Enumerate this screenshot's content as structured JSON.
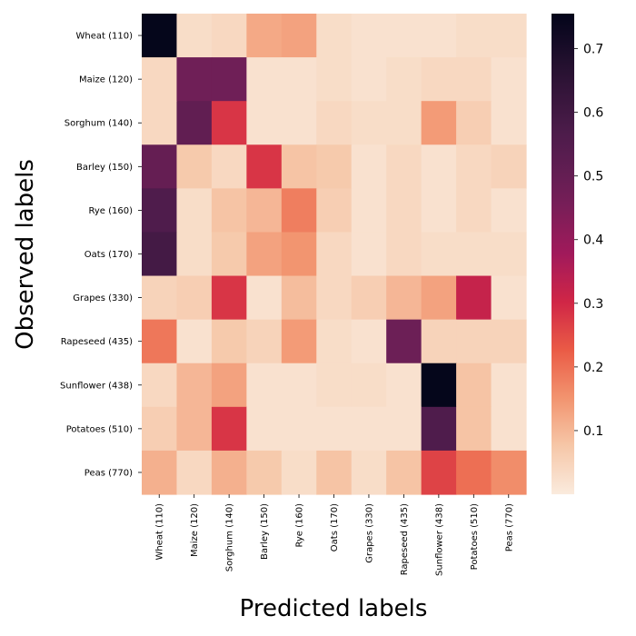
{
  "chart_data": {
    "type": "heatmap",
    "title": "",
    "xlabel": "Predicted labels",
    "ylabel": "Observed labels",
    "x_categories": [
      "Wheat (110)",
      "Maize (120)",
      "Sorghum (140)",
      "Barley (150)",
      "Rye (160)",
      "Oats (170)",
      "Grapes (330)",
      "Rapeseed (435)",
      "Sunflower (438)",
      "Potatoes (510)",
      "Peas (770)"
    ],
    "y_categories": [
      "Wheat (110)",
      "Maize (120)",
      "Sorghum (140)",
      "Barley (150)",
      "Rye (160)",
      "Oats (170)",
      "Grapes (330)",
      "Rapeseed (435)",
      "Sunflower (438)",
      "Potatoes (510)",
      "Peas (770)"
    ],
    "values": [
      [
        0.75,
        0.03,
        0.04,
        0.12,
        0.13,
        0.03,
        0.02,
        0.02,
        0.02,
        0.03,
        0.03
      ],
      [
        0.04,
        0.47,
        0.47,
        0.02,
        0.02,
        0.03,
        0.02,
        0.03,
        0.04,
        0.04,
        0.02
      ],
      [
        0.04,
        0.51,
        0.28,
        0.02,
        0.02,
        0.04,
        0.03,
        0.03,
        0.14,
        0.06,
        0.02
      ],
      [
        0.5,
        0.07,
        0.04,
        0.28,
        0.08,
        0.07,
        0.02,
        0.04,
        0.02,
        0.04,
        0.05
      ],
      [
        0.56,
        0.03,
        0.08,
        0.1,
        0.18,
        0.06,
        0.02,
        0.04,
        0.02,
        0.04,
        0.02
      ],
      [
        0.59,
        0.03,
        0.07,
        0.13,
        0.15,
        0.04,
        0.02,
        0.04,
        0.03,
        0.03,
        0.03
      ],
      [
        0.05,
        0.06,
        0.28,
        0.02,
        0.09,
        0.04,
        0.06,
        0.1,
        0.13,
        0.32,
        0.02
      ],
      [
        0.19,
        0.02,
        0.07,
        0.05,
        0.14,
        0.03,
        0.02,
        0.48,
        0.05,
        0.05,
        0.05
      ],
      [
        0.04,
        0.1,
        0.13,
        0.02,
        0.02,
        0.03,
        0.03,
        0.02,
        0.75,
        0.08,
        0.02
      ],
      [
        0.06,
        0.1,
        0.28,
        0.02,
        0.02,
        0.02,
        0.02,
        0.02,
        0.56,
        0.08,
        0.02
      ],
      [
        0.11,
        0.04,
        0.11,
        0.07,
        0.03,
        0.08,
        0.03,
        0.08,
        0.26,
        0.2,
        0.16
      ]
    ],
    "colorbar": {
      "vmin": 0.0,
      "vmax": 0.755,
      "ticks": [
        0.1,
        0.2,
        0.3,
        0.4,
        0.5,
        0.6,
        0.7
      ],
      "tick_labels": [
        "0.1",
        "0.2",
        "0.3",
        "0.4",
        "0.5",
        "0.6",
        "0.7"
      ]
    },
    "colormap": "rocket_r",
    "grid": false
  }
}
